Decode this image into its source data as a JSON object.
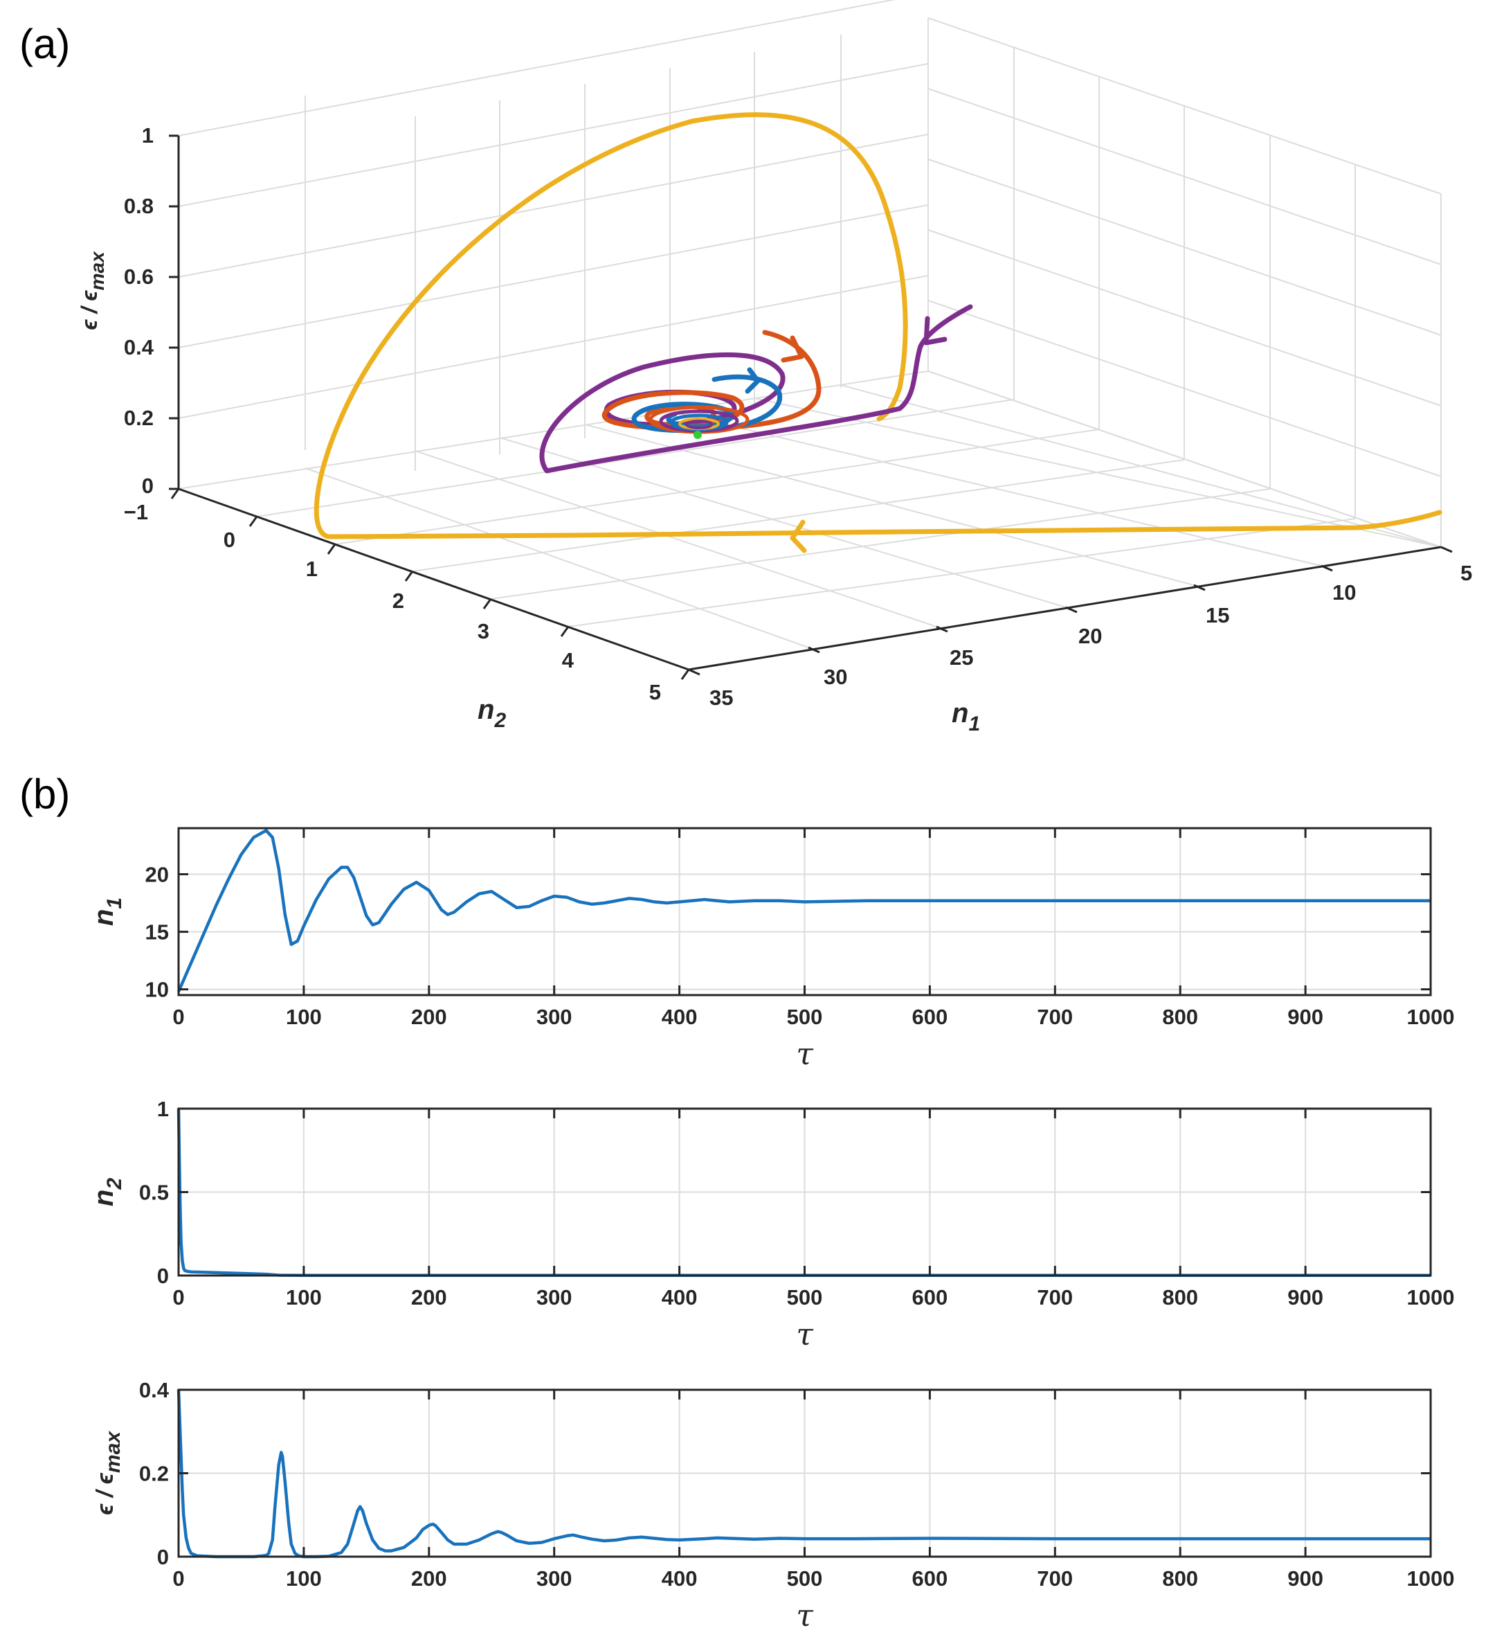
{
  "panel_a_label": "(a)",
  "panel_b_label": "(b)",
  "colors": {
    "axis": "#262626",
    "grid": "#dcdcdc",
    "series_blue": "#1872bd",
    "series_orange": "#d95319",
    "series_yellow": "#edb120",
    "series_purple": "#7e2f8e",
    "equilibrium_green": "#33cc33"
  },
  "chart_data": [
    {
      "id": "phase3d",
      "type": "line",
      "title": "",
      "x": {
        "label": "n",
        "label_sub": "1",
        "ticks": [
          "5",
          "10",
          "15",
          "20",
          "25",
          "30",
          "35"
        ],
        "range": [
          5,
          35
        ]
      },
      "y": {
        "label": "n",
        "label_sub": "2",
        "ticks": [
          "−1",
          "0",
          "1",
          "2",
          "3",
          "4",
          "5"
        ],
        "range": [
          -1,
          5
        ]
      },
      "z": {
        "label": "ϵ / ϵ",
        "label_sub": "max",
        "ticks": [
          "0",
          "0.2",
          "0.4",
          "0.6",
          "0.8",
          "1"
        ],
        "range": [
          0,
          1
        ]
      },
      "equilibrium": {
        "n1": 17.7,
        "n2": 0,
        "e": 0.05
      },
      "series": [
        {
          "name": "trajectory-yellow",
          "color": "#edb120",
          "start": [
            5,
            1,
            0.1
          ],
          "peak_e": 0.98
        },
        {
          "name": "trajectory-purple",
          "color": "#7e2f8e",
          "start": [
            10,
            0,
            0.5
          ],
          "peak_e": 0.3
        },
        {
          "name": "trajectory-orange",
          "color": "#d95319",
          "start": [
            20,
            0,
            0.45
          ],
          "peak_e": 0.35
        },
        {
          "name": "trajectory-blue",
          "color": "#1872bd",
          "start": [
            25,
            0,
            0.3
          ],
          "peak_e": 0.3
        }
      ]
    },
    {
      "id": "ts_n1",
      "type": "line",
      "title": "",
      "xlabel": "τ",
      "ylabel": "n",
      "ylabel_sub": "1",
      "xlim": [
        0,
        1000
      ],
      "ylim": [
        9.5,
        24
      ],
      "xticks": [
        "0",
        "100",
        "200",
        "300",
        "400",
        "500",
        "600",
        "700",
        "800",
        "900",
        "1000"
      ],
      "yticks": [
        "10",
        "15",
        "20"
      ],
      "ytick_values": [
        10,
        15,
        20
      ],
      "series": [
        {
          "name": "n1",
          "x": [
            0,
            10,
            20,
            30,
            40,
            50,
            60,
            70,
            75,
            80,
            85,
            90,
            95,
            100,
            110,
            120,
            130,
            135,
            140,
            150,
            155,
            160,
            170,
            180,
            190,
            200,
            210,
            215,
            220,
            230,
            240,
            250,
            260,
            270,
            280,
            290,
            300,
            310,
            320,
            330,
            340,
            350,
            360,
            370,
            380,
            390,
            400,
            410,
            420,
            430,
            440,
            460,
            480,
            500,
            550,
            600,
            700,
            800,
            900,
            1000
          ],
          "y": [
            9.8,
            12.3,
            14.8,
            17.3,
            19.6,
            21.7,
            23.2,
            23.8,
            23.2,
            20.5,
            16.5,
            13.9,
            14.2,
            15.5,
            17.8,
            19.6,
            20.6,
            20.6,
            19.7,
            16.4,
            15.6,
            15.8,
            17.4,
            18.7,
            19.3,
            18.6,
            16.9,
            16.5,
            16.7,
            17.6,
            18.3,
            18.5,
            17.8,
            17.1,
            17.2,
            17.7,
            18.1,
            18.0,
            17.6,
            17.4,
            17.5,
            17.7,
            17.9,
            17.8,
            17.6,
            17.5,
            17.6,
            17.7,
            17.8,
            17.7,
            17.6,
            17.7,
            17.7,
            17.6,
            17.7,
            17.7,
            17.7,
            17.7,
            17.7,
            17.7
          ]
        }
      ]
    },
    {
      "id": "ts_n2",
      "type": "line",
      "title": "",
      "xlabel": "τ",
      "ylabel": "n",
      "ylabel_sub": "2",
      "xlim": [
        0,
        1000
      ],
      "ylim": [
        0,
        1
      ],
      "xticks": [
        "0",
        "100",
        "200",
        "300",
        "400",
        "500",
        "600",
        "700",
        "800",
        "900",
        "1000"
      ],
      "yticks": [
        "0",
        "0.5",
        "1"
      ],
      "ytick_values": [
        0,
        0.5,
        1
      ],
      "series": [
        {
          "name": "n2",
          "x": [
            0,
            0.5,
            1,
            1.5,
            2,
            3,
            4,
            5,
            7,
            10,
            20,
            40,
            70,
            80,
            100,
            200,
            500,
            1000
          ],
          "y": [
            1.0,
            0.75,
            0.52,
            0.34,
            0.2,
            0.09,
            0.045,
            0.03,
            0.025,
            0.022,
            0.02,
            0.015,
            0.008,
            0.002,
            0.001,
            0.001,
            0.001,
            0.001
          ]
        }
      ]
    },
    {
      "id": "ts_e",
      "type": "line",
      "title": "",
      "xlabel": "τ",
      "ylabel": "ϵ / ϵ",
      "ylabel_sub": "max",
      "xlim": [
        0,
        1000
      ],
      "ylim": [
        0,
        0.4
      ],
      "xticks": [
        "0",
        "100",
        "200",
        "300",
        "400",
        "500",
        "600",
        "700",
        "800",
        "900",
        "1000"
      ],
      "yticks": [
        "0",
        "0.2",
        "0.4"
      ],
      "ytick_values": [
        0,
        0.2,
        0.4
      ],
      "series": [
        {
          "name": "e",
          "x": [
            0,
            1,
            2,
            3,
            4,
            6,
            8,
            10,
            15,
            30,
            60,
            70,
            72,
            75,
            77,
            80,
            82,
            83,
            85,
            88,
            90,
            93,
            96,
            100,
            110,
            120,
            130,
            135,
            140,
            143,
            145,
            147,
            150,
            155,
            160,
            165,
            170,
            180,
            190,
            195,
            200,
            203,
            205,
            210,
            215,
            220,
            230,
            240,
            250,
            255,
            258,
            262,
            266,
            270,
            280,
            290,
            300,
            310,
            315,
            318,
            322,
            330,
            340,
            350,
            360,
            370,
            380,
            390,
            400,
            420,
            430,
            440,
            460,
            480,
            500,
            540,
            600,
            700,
            800,
            900,
            1000
          ],
          "y": [
            0.4,
            0.32,
            0.24,
            0.16,
            0.1,
            0.045,
            0.02,
            0.008,
            0.002,
            0.0,
            0.0,
            0.003,
            0.008,
            0.04,
            0.12,
            0.22,
            0.25,
            0.24,
            0.18,
            0.08,
            0.03,
            0.008,
            0.002,
            0.0,
            0.0,
            0.001,
            0.01,
            0.03,
            0.08,
            0.11,
            0.12,
            0.11,
            0.08,
            0.04,
            0.02,
            0.014,
            0.014,
            0.022,
            0.045,
            0.065,
            0.075,
            0.078,
            0.075,
            0.058,
            0.04,
            0.03,
            0.03,
            0.04,
            0.055,
            0.06,
            0.058,
            0.052,
            0.045,
            0.038,
            0.032,
            0.034,
            0.043,
            0.05,
            0.052,
            0.05,
            0.047,
            0.042,
            0.038,
            0.04,
            0.045,
            0.047,
            0.044,
            0.041,
            0.04,
            0.043,
            0.045,
            0.044,
            0.042,
            0.044,
            0.043,
            0.043,
            0.044,
            0.043,
            0.043,
            0.043,
            0.043
          ]
        }
      ]
    }
  ]
}
